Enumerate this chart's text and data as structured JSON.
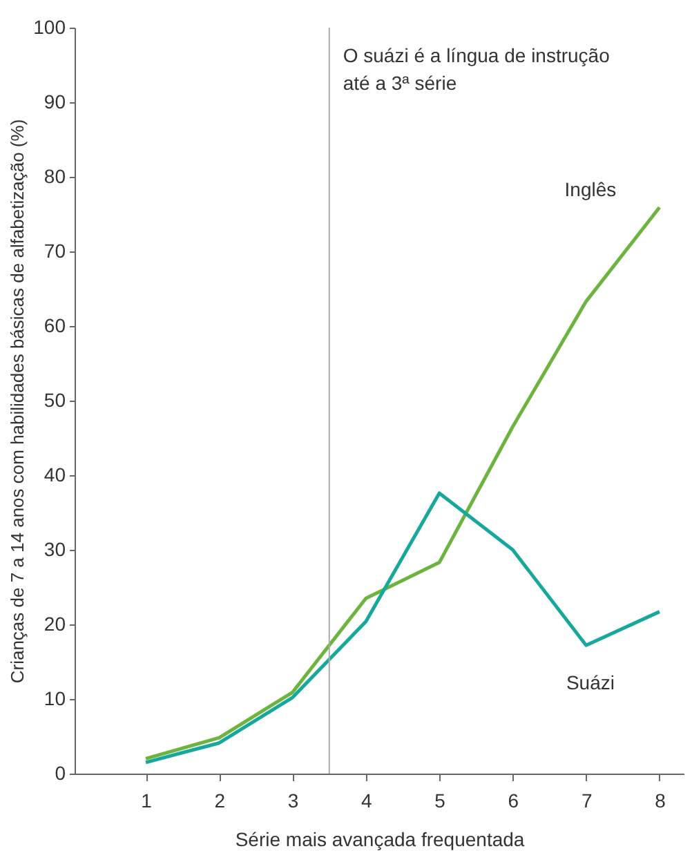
{
  "chart_data": {
    "type": "line",
    "xlabel": "Série mais avançada frequentada",
    "ylabel": "Crianças de 7 a 14 anos com habilidades básicas de alfabetização (%)",
    "x": [
      1,
      2,
      3,
      4,
      5,
      6,
      7,
      8
    ],
    "series": [
      {
        "name": "Inglês",
        "color": "#6db33f",
        "values": [
          2.0,
          4.8,
          10.9,
          23.5,
          28.3,
          46.5,
          63.3,
          75.9
        ]
      },
      {
        "name": "Suázi",
        "color": "#16a89a",
        "values": [
          1.5,
          4.1,
          10.2,
          20.4,
          37.6,
          30.0,
          17.2,
          21.7
        ]
      }
    ],
    "xlim": [
      0.03,
      8.33
    ],
    "xticks": [
      1,
      2,
      3,
      4,
      5,
      6,
      7,
      8
    ],
    "ylim": [
      0,
      100
    ],
    "yticks": [
      0,
      10,
      20,
      30,
      40,
      50,
      60,
      70,
      80,
      90,
      100
    ],
    "ref_lines": [
      {
        "axis": "x",
        "value": 3.5,
        "color": "#aaaaaa"
      }
    ],
    "annotations": [
      "O suázi é a língua de instrução até a 3ª série"
    ],
    "grid": false,
    "marker": "none",
    "line_style": "solid"
  }
}
